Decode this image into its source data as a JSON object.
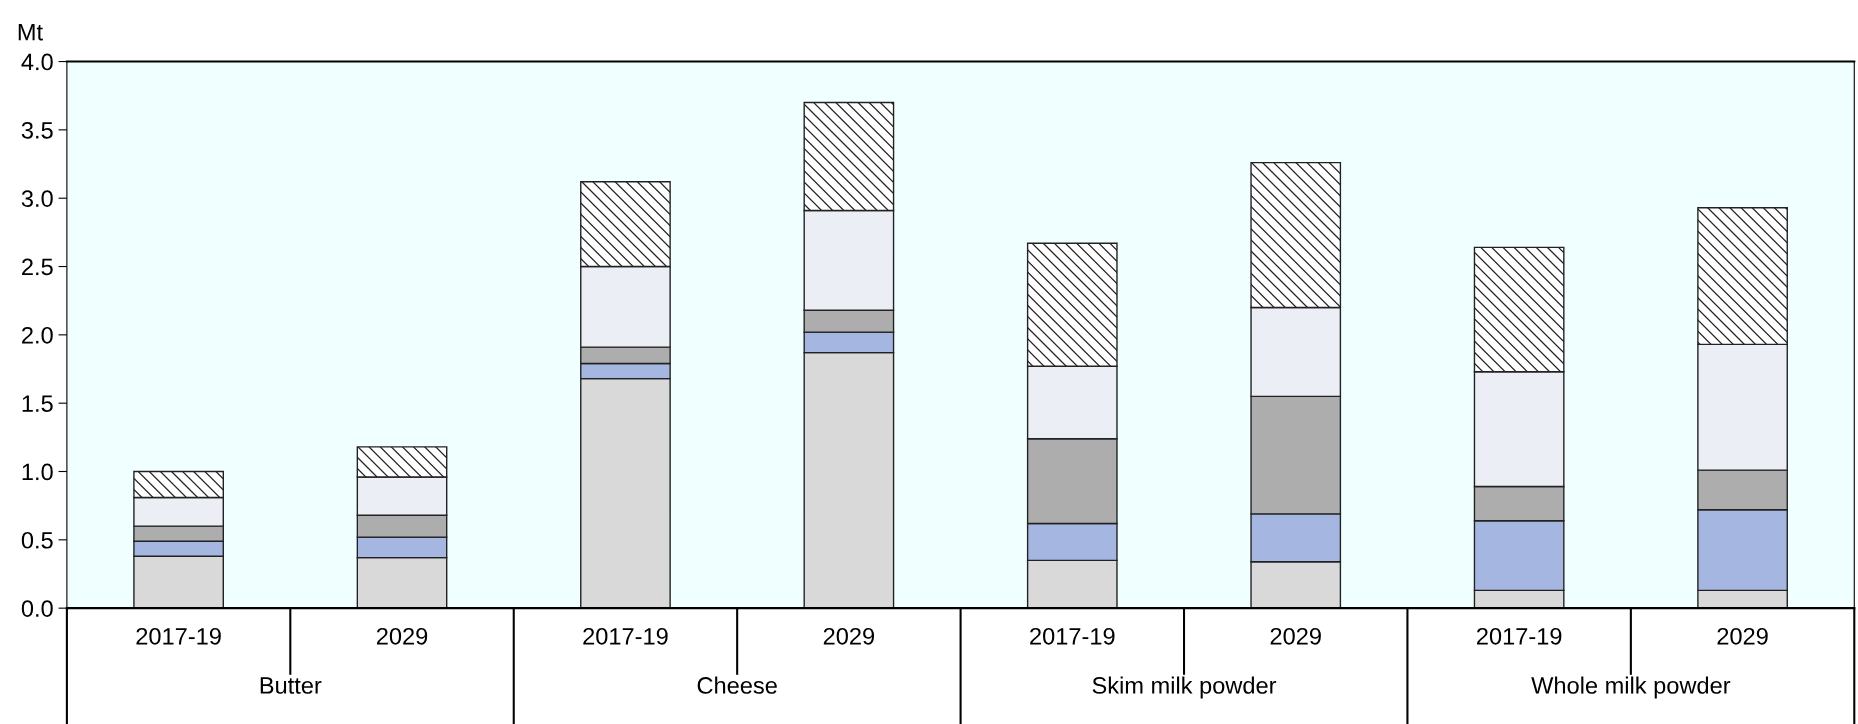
{
  "chart_data": {
    "type": "bar",
    "stacked": true,
    "ylabel": "Mt",
    "categories": [
      "2017-19",
      "2029",
      "2017-19",
      "2029",
      "2017-19",
      "2029",
      "2017-19",
      "2029"
    ],
    "annotations": [
      "Butter",
      "Cheese",
      "Skim milk powder",
      "Whole milk powder"
    ],
    "series": [
      {
        "color": "#d9d9d9",
        "values": [
          0.38,
          0.37,
          1.68,
          1.87,
          0.35,
          0.34,
          0.13,
          0.13
        ]
      },
      {
        "color": "#a5b7e0",
        "values": [
          0.11,
          0.15,
          0.11,
          0.15,
          0.27,
          0.35,
          0.51,
          0.59
        ]
      },
      {
        "color": "#adadad",
        "values": [
          0.11,
          0.16,
          0.12,
          0.16,
          0.62,
          0.86,
          0.25,
          0.29
        ]
      },
      {
        "color": "#eceef6",
        "values": [
          0.21,
          0.28,
          0.59,
          0.73,
          0.53,
          0.65,
          0.84,
          0.92
        ]
      },
      {
        "color": "#222222",
        "values": [
          0.19,
          0.22,
          0.62,
          0.79,
          0.9,
          1.06,
          0.91,
          1.0
        ]
      }
    ],
    "ylim": [
      0,
      4.0
    ],
    "yticks": [
      {
        "value": 0,
        "label": "0.0"
      },
      {
        "value": 0.5,
        "label": "0.5"
      },
      {
        "value": 1,
        "label": "1.0"
      },
      {
        "value": 1.5,
        "label": "1.5"
      },
      {
        "value": 2,
        "label": "2.0"
      },
      {
        "value": 2.5,
        "label": "2.5"
      },
      {
        "value": 3,
        "label": "3.0"
      },
      {
        "value": 3.5,
        "label": "3.5"
      },
      {
        "value": 4,
        "label": "4.0"
      }
    ],
    "grid": false,
    "legend": false
  }
}
